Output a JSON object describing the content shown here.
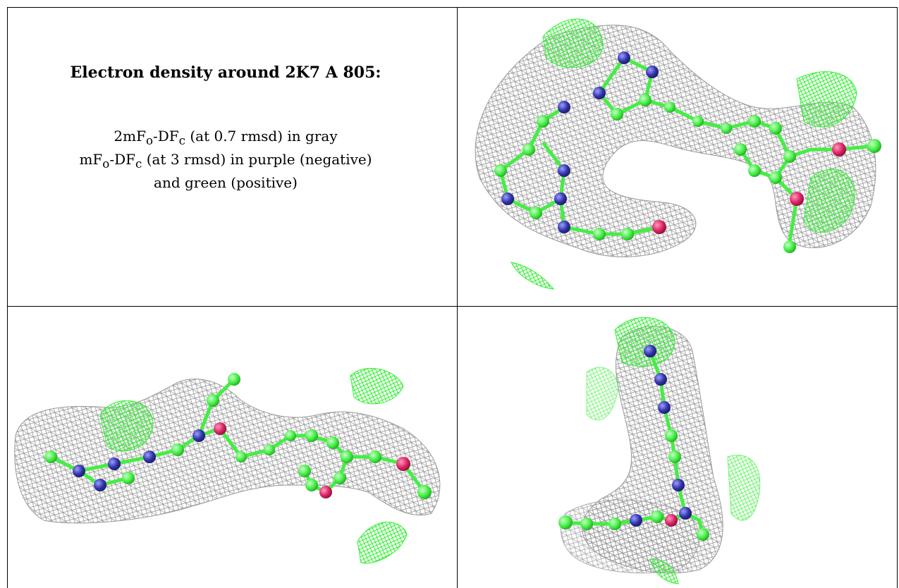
{
  "title": "Electron density around 2K7 A 805:",
  "legend": {
    "line1_prefix": "2mF",
    "line1_sub1": "o",
    "line1_mid": "-DF",
    "line1_sub2": "c",
    "line1_suffix": " (at 0.7 rmsd) in gray",
    "line2_prefix": "mF",
    "line2_sub1": "o",
    "line2_mid": "-DF",
    "line2_sub2": "c",
    "line2_suffix": " (at 3 rmsd) in purple (negative)",
    "line3": "and green (positive)"
  },
  "colors": {
    "mesh_gray": "#9a9a9a",
    "diff_green": "#33ee33",
    "atom_carbon": "#44ee44",
    "atom_nitrogen": "#3333aa",
    "atom_oxygen": "#dd2266"
  },
  "panels": [
    {
      "name": "view-top-right"
    },
    {
      "name": "view-bottom-left"
    },
    {
      "name": "view-bottom-right"
    }
  ]
}
